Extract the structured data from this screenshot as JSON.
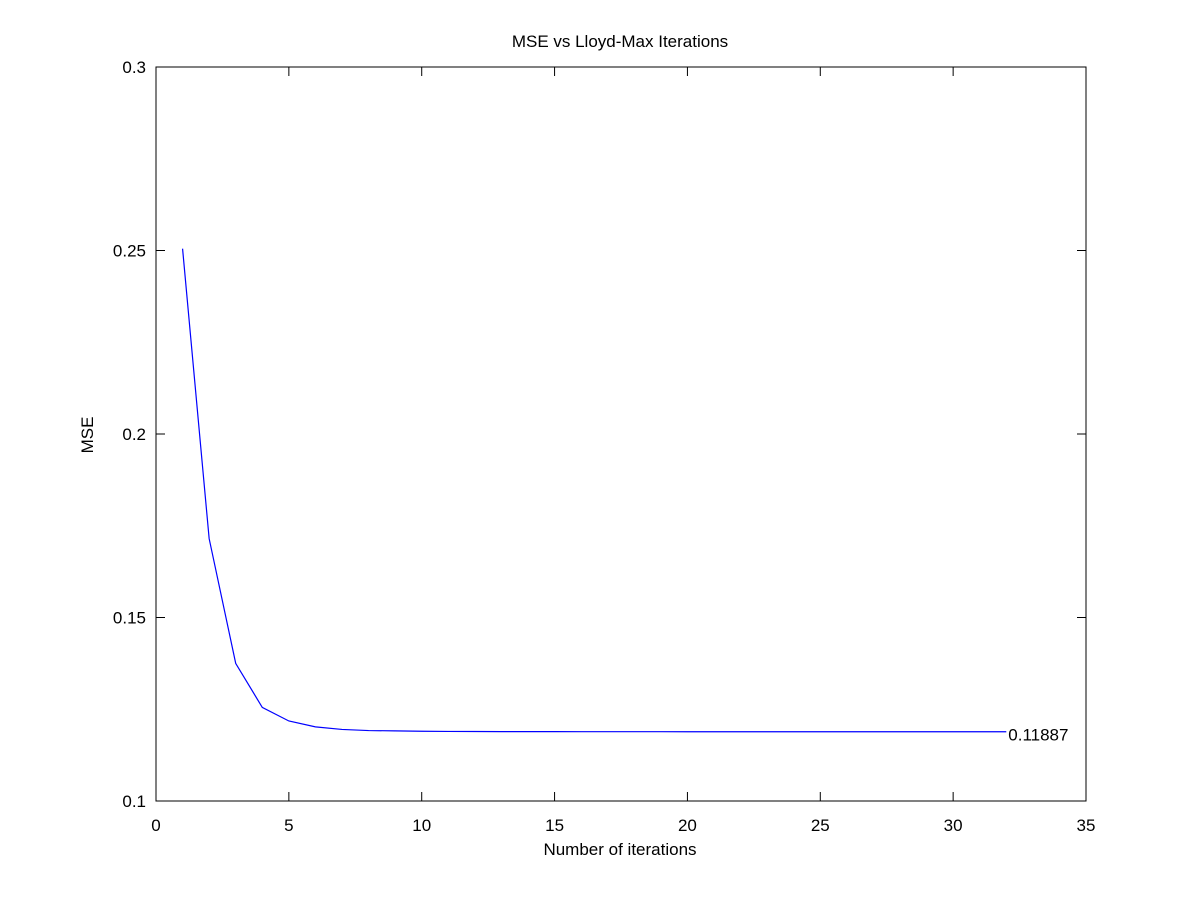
{
  "chart_data": {
    "type": "line",
    "title": "MSE vs Lloyd-Max Iterations",
    "xlabel": "Number of iterations",
    "ylabel": "MSE",
    "xlim": [
      0,
      35
    ],
    "ylim": [
      0.1,
      0.3
    ],
    "xticks": [
      0,
      5,
      10,
      15,
      20,
      25,
      30,
      35
    ],
    "xtick_labels": [
      "0",
      "5",
      "10",
      "15",
      "20",
      "25",
      "30",
      "35"
    ],
    "yticks": [
      0.1,
      0.15,
      0.2,
      0.25,
      0.3
    ],
    "ytick_labels": [
      "0.1",
      "0.15",
      "0.2",
      "0.25",
      "0.3"
    ],
    "grid": false,
    "line_color": "#0000ff",
    "series": [
      {
        "x": [
          1,
          2,
          3,
          4,
          5,
          6,
          7,
          8,
          9,
          10,
          11,
          12,
          13,
          14,
          15,
          16,
          17,
          18,
          19,
          20,
          21,
          22,
          23,
          24,
          25,
          26,
          27,
          28,
          29,
          30,
          31,
          32
        ],
        "y": [
          0.2505,
          0.1715,
          0.1375,
          0.1255,
          0.1218,
          0.1202,
          0.1195,
          0.1192,
          0.1191,
          0.119,
          0.11895,
          0.11893,
          0.11891,
          0.1189,
          0.1189,
          0.11889,
          0.11888,
          0.11888,
          0.11888,
          0.11887,
          0.11887,
          0.11887,
          0.11887,
          0.11887,
          0.11887,
          0.11887,
          0.11887,
          0.11887,
          0.11887,
          0.11887,
          0.11887,
          0.11887
        ]
      }
    ],
    "annotation": {
      "text": "0.11887",
      "x": 32,
      "y": 0.11887
    }
  }
}
